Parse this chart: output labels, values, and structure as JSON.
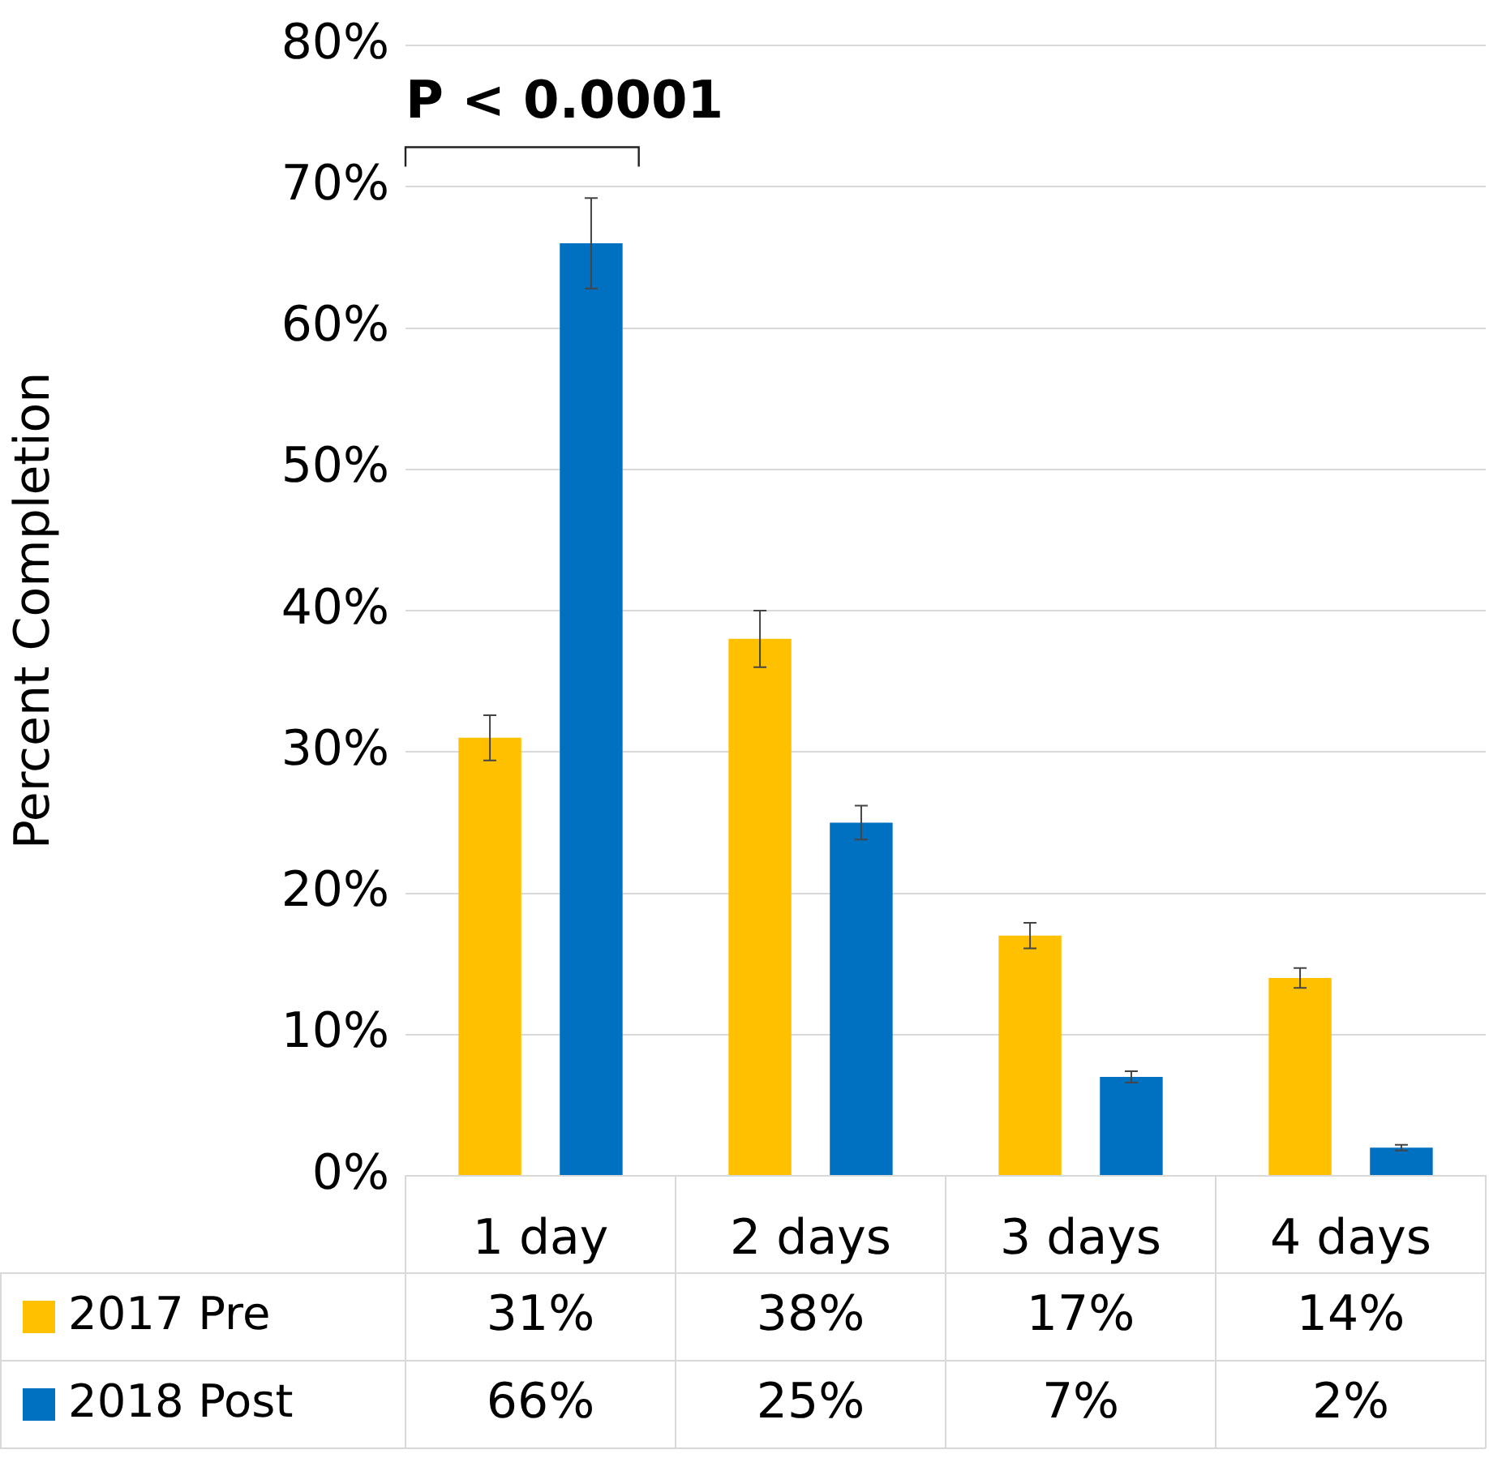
{
  "chart_data": {
    "type": "bar",
    "ylabel": "Percent Completion",
    "categories": [
      "1 day",
      "2 days",
      "3 days",
      "4 days"
    ],
    "series": [
      {
        "name": "2017 Pre",
        "color": "#ffc000",
        "values": [
          31,
          38,
          17,
          14
        ],
        "value_labels": [
          "31%",
          "38%",
          "17%",
          "14%"
        ],
        "errors": [
          1.6,
          2,
          0.9,
          0.7
        ]
      },
      {
        "name": "2018 Post",
        "color": "#0070c0",
        "values": [
          66,
          25,
          7,
          2
        ],
        "value_labels": [
          "66%",
          "25%",
          "7%",
          "2%"
        ],
        "errors": [
          3.2,
          1.2,
          0.4,
          0.2
        ]
      }
    ],
    "ylim": [
      0,
      80
    ],
    "yticks": [
      {
        "value": 0,
        "label": "0%"
      },
      {
        "value": 10,
        "label": "10%"
      },
      {
        "value": 20,
        "label": "20%"
      },
      {
        "value": 30,
        "label": "30%"
      },
      {
        "value": 40,
        "label": "40%"
      },
      {
        "value": 50,
        "label": "50%"
      },
      {
        "value": 60,
        "label": "60%"
      },
      {
        "value": 70,
        "label": "70%"
      },
      {
        "value": 80,
        "label": "80%"
      }
    ],
    "grid": "y",
    "legend": "bottom",
    "annotations": [
      "P < 0.0001"
    ]
  }
}
